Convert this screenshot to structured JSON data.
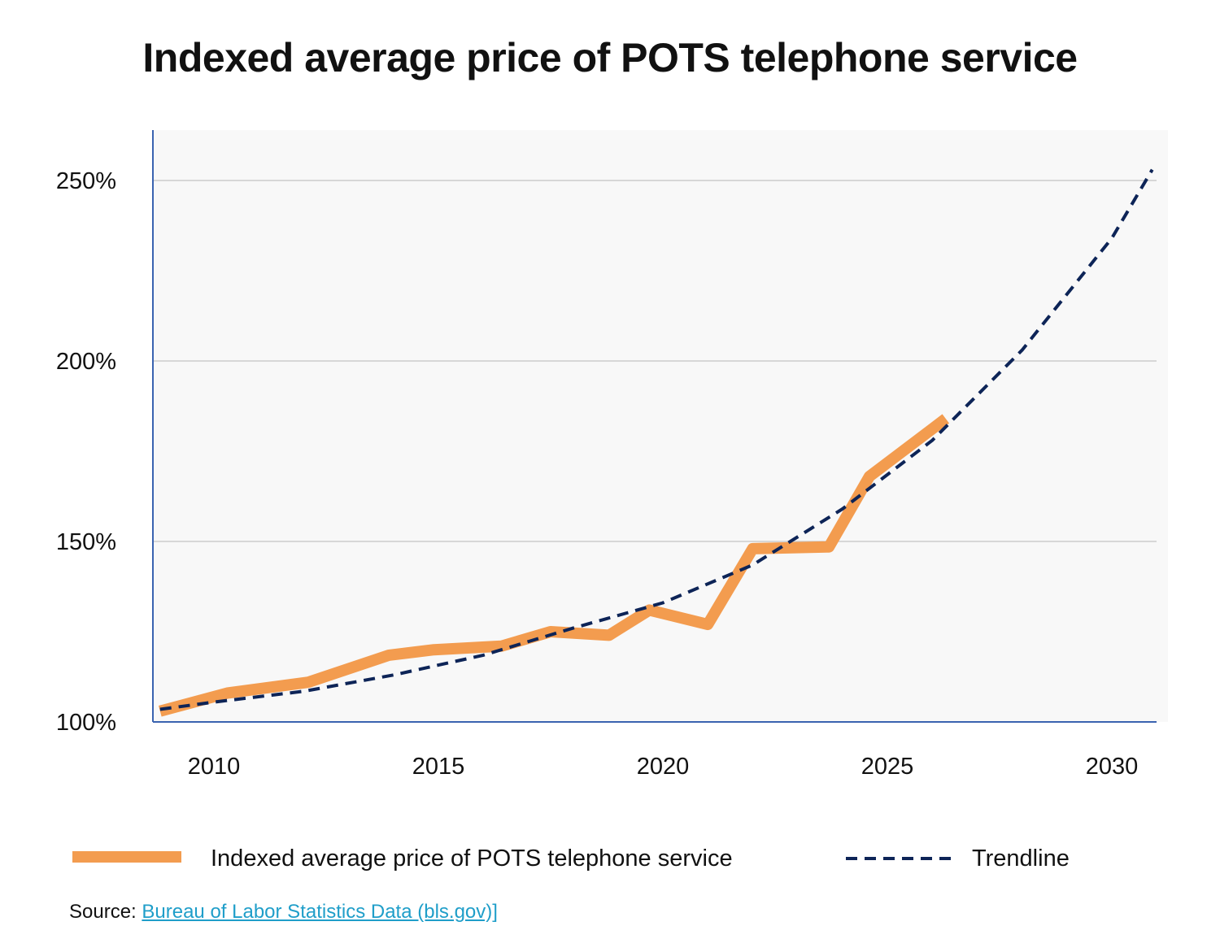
{
  "chart_data": {
    "type": "line",
    "title": "Indexed average price of POTS telephone service",
    "xlabel": "",
    "ylabel": "",
    "xlim": [
      2008,
      2031
    ],
    "ylim": [
      100,
      265
    ],
    "x_ticks": [
      "2010",
      "2015",
      "2020",
      "2025",
      "2030"
    ],
    "x_tick_values": [
      2010,
      2015,
      2020,
      2025,
      2030
    ],
    "y_ticks": [
      "100%",
      "150%",
      "200%",
      "250%"
    ],
    "y_tick_values": [
      100,
      150,
      200,
      250
    ],
    "grid": true,
    "legend_position": "bottom",
    "series": [
      {
        "name": "Indexed average price of POTS telephone service",
        "color": "#f39c4f",
        "style": "solid",
        "x": [
          2008.8,
          2010.3,
          2012.1,
          2013.9,
          2014.9,
          2016.4,
          2017.5,
          2018.8,
          2019.7,
          2021.0,
          2022.0,
          2023.7,
          2024.6,
          2026.3
        ],
        "y": [
          103,
          108,
          111,
          118.5,
          120,
          121,
          125,
          124,
          131,
          127,
          148,
          148.5,
          168,
          184
        ]
      },
      {
        "name": "Trendline",
        "color": "#0d2457",
        "style": "dashed",
        "x": [
          2008.8,
          2010,
          2012,
          2014,
          2016,
          2018,
          2020,
          2022,
          2024,
          2026,
          2028,
          2030,
          2030.9
        ],
        "y": [
          103.5,
          105.5,
          108.5,
          113,
          118.5,
          126,
          133,
          143.5,
          159,
          178,
          203,
          234,
          253
        ]
      }
    ]
  },
  "source": {
    "label": "Source: ",
    "link_text": "Bureau of Labor Statistics Data (bls.gov)]"
  }
}
